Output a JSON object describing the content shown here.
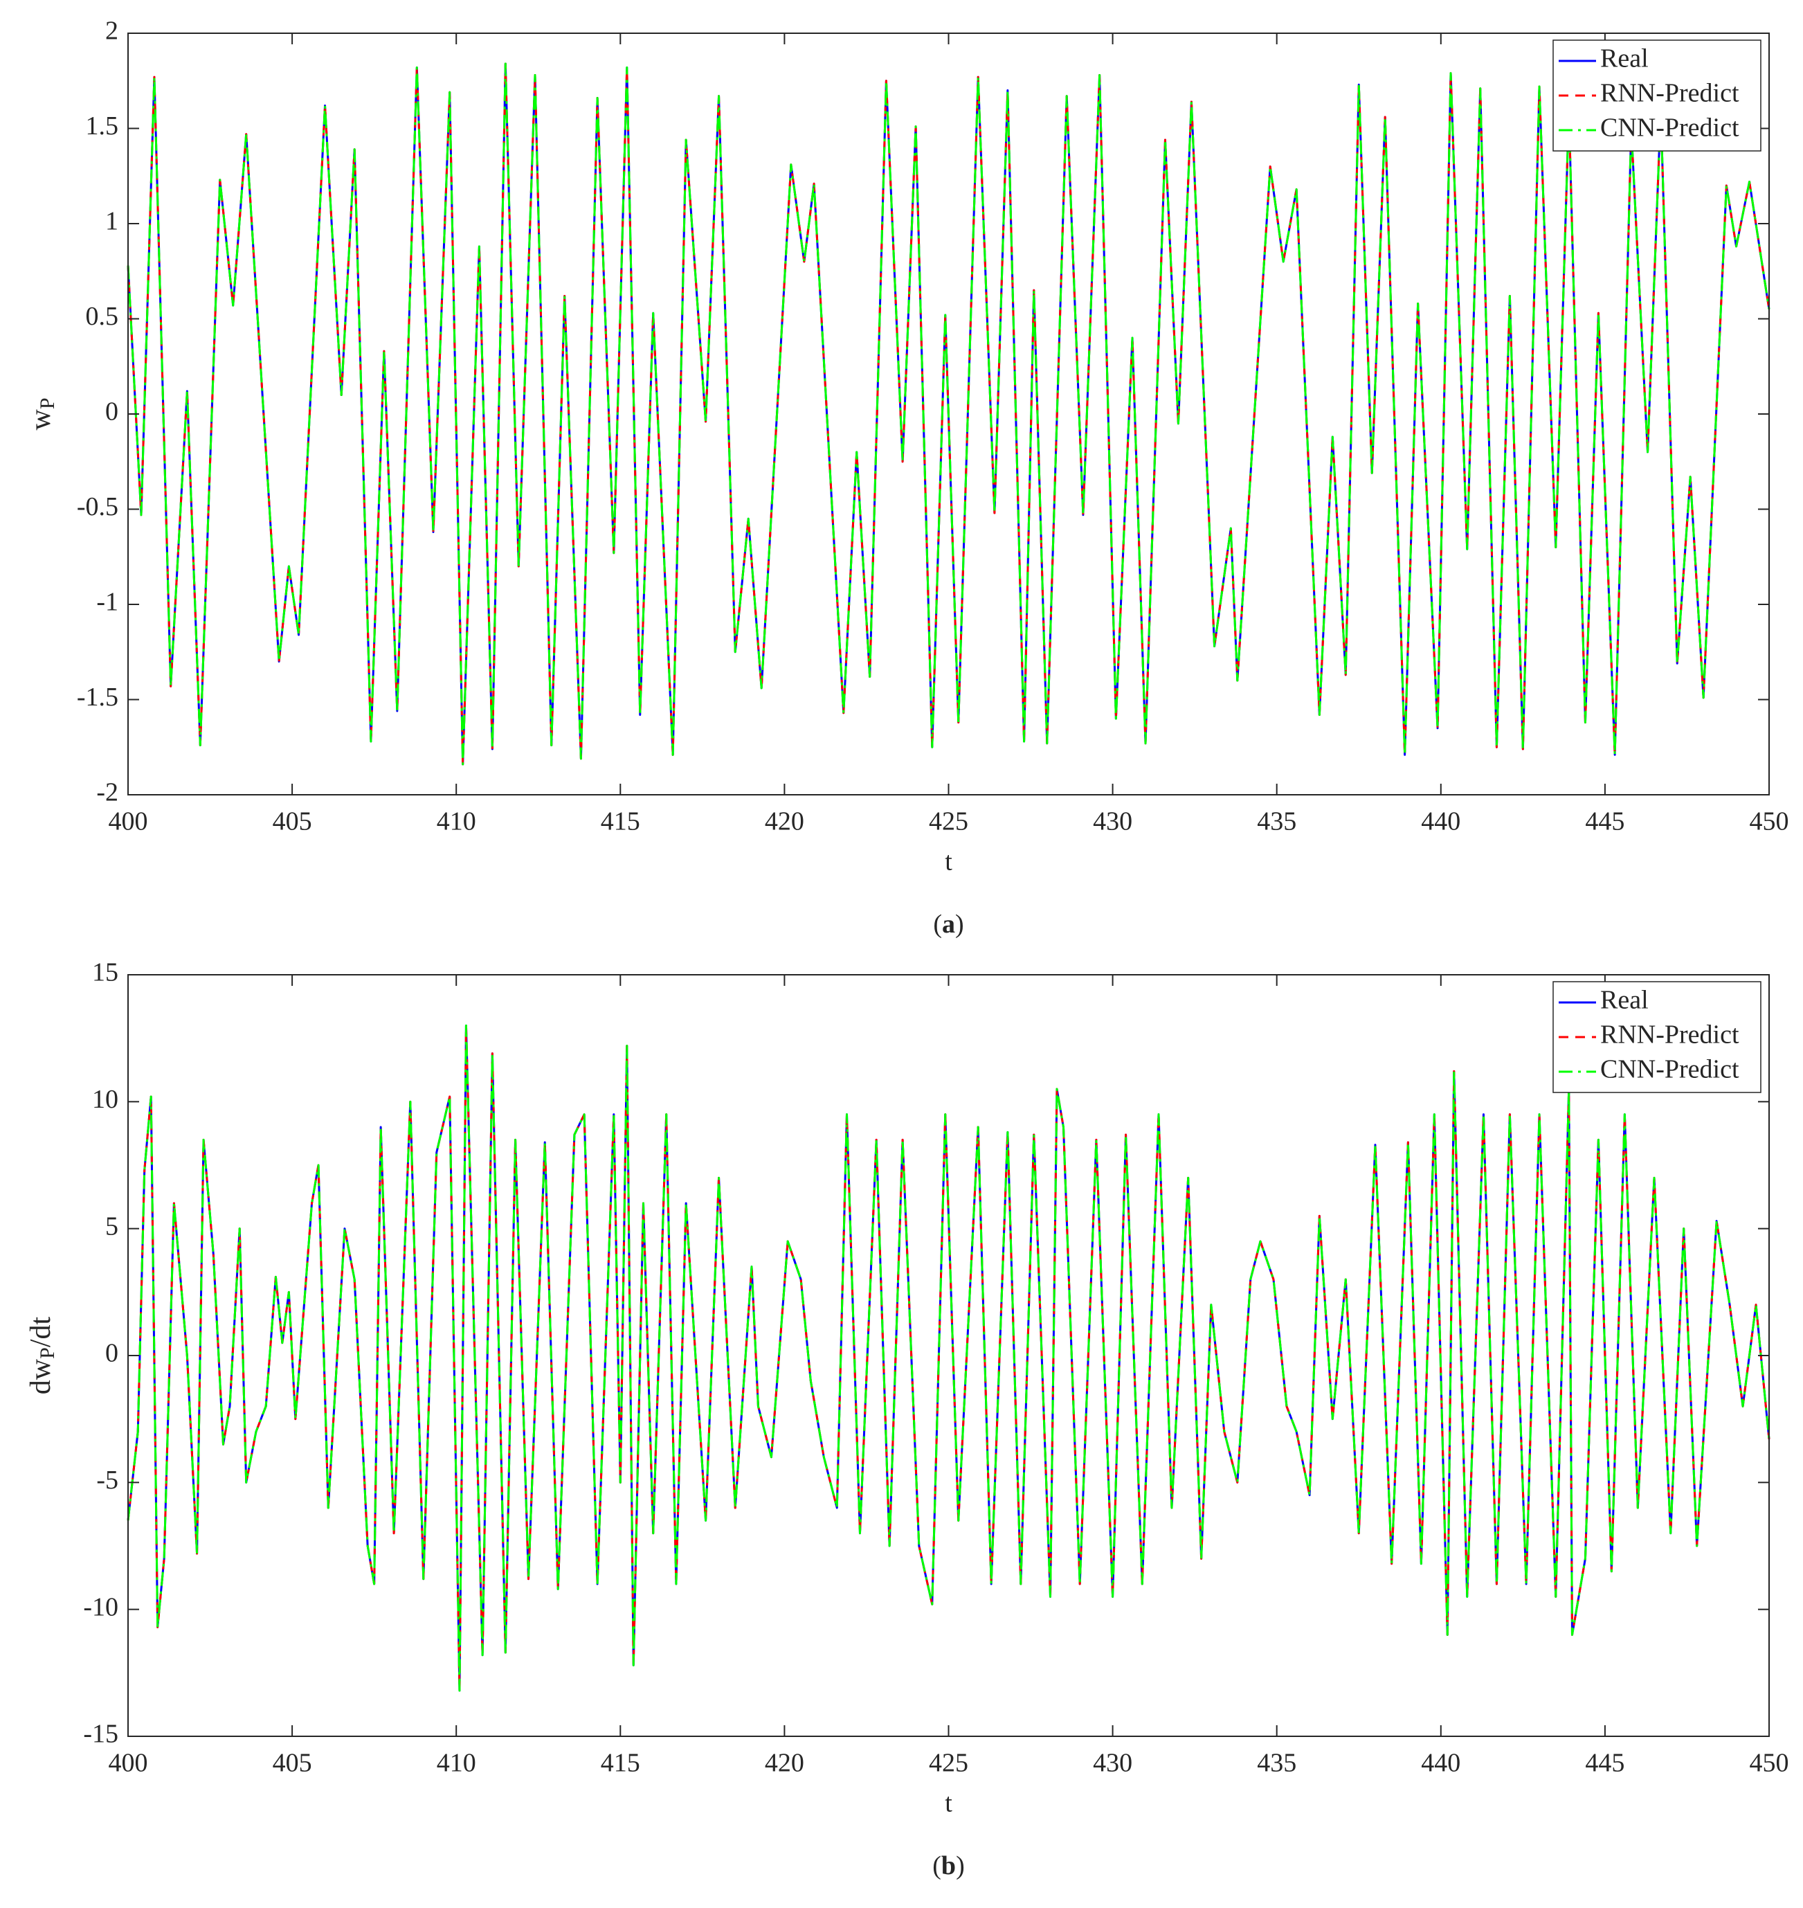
{
  "chart_data": [
    {
      "type": "line",
      "panel_label": "(a)",
      "xlabel": "t",
      "ylabel": [
        "w",
        "P"
      ],
      "xlim": [
        400,
        450
      ],
      "xticks": [
        400,
        405,
        410,
        415,
        420,
        425,
        430,
        435,
        440,
        445,
        450
      ],
      "ylim": [
        -2,
        2
      ],
      "yticks": [
        -2,
        -1.5,
        -1,
        -0.5,
        0,
        0.5,
        1,
        1.5,
        2
      ],
      "grid": false,
      "legend": "upper right",
      "x": [
        400.0,
        400.4,
        400.8,
        401.3,
        401.8,
        402.2,
        402.8,
        403.2,
        403.6,
        404.6,
        404.9,
        405.2,
        406.0,
        406.5,
        406.9,
        407.4,
        407.8,
        408.2,
        408.8,
        409.3,
        409.8,
        410.2,
        410.7,
        411.1,
        411.5,
        411.9,
        412.4,
        412.9,
        413.3,
        413.8,
        414.3,
        414.8,
        415.2,
        415.6,
        416.0,
        416.6,
        417.0,
        417.6,
        418.0,
        418.5,
        418.9,
        419.3,
        420.2,
        420.6,
        420.9,
        421.8,
        422.2,
        422.6,
        423.1,
        423.6,
        424.0,
        424.5,
        424.9,
        425.3,
        425.9,
        426.4,
        426.8,
        427.3,
        427.6,
        428.0,
        428.6,
        429.1,
        429.6,
        430.1,
        430.6,
        431.0,
        431.6,
        432.0,
        432.4,
        433.1,
        433.6,
        433.8,
        434.8,
        435.2,
        435.6,
        436.3,
        436.7,
        437.1,
        437.5,
        437.9,
        438.3,
        438.9,
        439.3,
        439.9,
        440.3,
        440.8,
        441.2,
        441.7,
        442.1,
        442.5,
        443.0,
        443.5,
        443.9,
        444.4,
        444.8,
        445.3,
        445.8,
        446.3,
        446.7,
        447.2,
        447.6,
        448.0,
        448.7,
        449.0,
        449.4,
        450.0
      ],
      "series": [
        {
          "name": "Real",
          "color": "#0000ff",
          "style": "solid",
          "values": [
            0.78,
            -0.53,
            1.77,
            -1.43,
            0.12,
            -1.74,
            1.23,
            0.57,
            1.47,
            -1.3,
            -0.8,
            -1.16,
            1.62,
            0.1,
            1.39,
            -1.72,
            0.33,
            -1.56,
            1.82,
            -0.62,
            1.69,
            -1.84,
            0.88,
            -1.76,
            1.84,
            -0.8,
            1.78,
            -1.74,
            0.62,
            -1.81,
            1.66,
            -0.73,
            1.82,
            -1.58,
            0.53,
            -1.79,
            1.44,
            -0.04,
            1.67,
            -1.25,
            -0.55,
            -1.44,
            1.31,
            0.8,
            1.21,
            -1.57,
            -0.2,
            -1.38,
            1.75,
            -0.25,
            1.51,
            -1.75,
            0.52,
            -1.62,
            1.77,
            -0.52,
            1.7,
            -1.72,
            0.65,
            -1.73,
            1.67,
            -0.53,
            1.78,
            -1.6,
            0.4,
            -1.73,
            1.44,
            -0.05,
            1.64,
            -1.22,
            -0.6,
            -1.4,
            1.3,
            0.8,
            1.18,
            -1.58,
            -0.12,
            -1.37,
            1.73,
            -0.31,
            1.56,
            -1.79,
            0.58,
            -1.65,
            1.79,
            -0.71,
            1.71,
            -1.75,
            0.62,
            -1.76,
            1.72,
            -0.7,
            1.6,
            -1.62,
            0.53,
            -1.79,
            1.5,
            -0.2,
            1.6,
            -1.31,
            -0.33,
            -1.49,
            1.2,
            0.88,
            1.22,
            0.55
          ]
        },
        {
          "name": "RNN-Predict",
          "color": "#ff0000",
          "style": "dashed",
          "values": [
            0.78,
            -0.53,
            1.77,
            -1.43,
            0.12,
            -1.74,
            1.23,
            0.57,
            1.47,
            -1.3,
            -0.8,
            -1.16,
            1.62,
            0.1,
            1.39,
            -1.72,
            0.33,
            -1.56,
            1.82,
            -0.62,
            1.69,
            -1.84,
            0.88,
            -1.76,
            1.84,
            -0.8,
            1.78,
            -1.74,
            0.62,
            -1.81,
            1.66,
            -0.73,
            1.82,
            -1.58,
            0.53,
            -1.79,
            1.44,
            -0.04,
            1.67,
            -1.25,
            -0.55,
            -1.44,
            1.31,
            0.8,
            1.21,
            -1.57,
            -0.2,
            -1.38,
            1.75,
            -0.25,
            1.51,
            -1.75,
            0.52,
            -1.62,
            1.77,
            -0.52,
            1.7,
            -1.72,
            0.65,
            -1.73,
            1.67,
            -0.53,
            1.78,
            -1.6,
            0.4,
            -1.73,
            1.44,
            -0.05,
            1.64,
            -1.22,
            -0.6,
            -1.4,
            1.3,
            0.8,
            1.18,
            -1.58,
            -0.12,
            -1.37,
            1.73,
            -0.31,
            1.56,
            -1.79,
            0.58,
            -1.65,
            1.79,
            -0.71,
            1.71,
            -1.75,
            0.62,
            -1.76,
            1.72,
            -0.7,
            1.6,
            -1.62,
            0.53,
            -1.79,
            1.5,
            -0.2,
            1.6,
            -1.31,
            -0.33,
            -1.49,
            1.2,
            0.88,
            1.22,
            0.55
          ]
        },
        {
          "name": "CNN-Predict",
          "color": "#00ff00",
          "style": "dashdot",
          "values": [
            0.78,
            -0.53,
            1.77,
            -1.43,
            0.12,
            -1.74,
            1.23,
            0.57,
            1.47,
            -1.3,
            -0.8,
            -1.16,
            1.62,
            0.1,
            1.39,
            -1.72,
            0.33,
            -1.56,
            1.82,
            -0.62,
            1.69,
            -1.84,
            0.88,
            -1.76,
            1.84,
            -0.8,
            1.78,
            -1.74,
            0.62,
            -1.81,
            1.66,
            -0.73,
            1.82,
            -1.58,
            0.53,
            -1.79,
            1.44,
            -0.04,
            1.67,
            -1.25,
            -0.55,
            -1.44,
            1.31,
            0.8,
            1.21,
            -1.57,
            -0.2,
            -1.38,
            1.75,
            -0.25,
            1.51,
            -1.75,
            0.52,
            -1.62,
            1.77,
            -0.52,
            1.7,
            -1.72,
            0.65,
            -1.73,
            1.67,
            -0.53,
            1.78,
            -1.6,
            0.4,
            -1.73,
            1.44,
            -0.05,
            1.64,
            -1.22,
            -0.6,
            -1.4,
            1.3,
            0.8,
            1.18,
            -1.58,
            -0.12,
            -1.37,
            1.73,
            -0.31,
            1.56,
            -1.79,
            0.58,
            -1.65,
            1.79,
            -0.71,
            1.71,
            -1.75,
            0.62,
            -1.76,
            1.72,
            -0.7,
            1.6,
            -1.62,
            0.53,
            -1.79,
            1.5,
            -0.2,
            1.6,
            -1.31,
            -0.33,
            -1.49,
            1.2,
            0.88,
            1.22,
            0.55
          ]
        }
      ]
    },
    {
      "type": "line",
      "panel_label": "(b)",
      "xlabel": "t",
      "ylabel": [
        "dw",
        "P",
        "/dt"
      ],
      "xlim": [
        400,
        450
      ],
      "xticks": [
        400,
        405,
        410,
        415,
        420,
        425,
        430,
        435,
        440,
        445,
        450
      ],
      "ylim": [
        -15,
        15
      ],
      "yticks": [
        -15,
        -10,
        -5,
        0,
        5,
        10,
        15
      ],
      "grid": false,
      "legend": "upper right",
      "x": [
        400.0,
        400.3,
        400.5,
        400.7,
        400.9,
        401.1,
        401.4,
        401.8,
        402.1,
        402.3,
        402.6,
        402.9,
        403.1,
        403.4,
        403.6,
        403.9,
        404.2,
        404.5,
        404.7,
        404.9,
        405.1,
        405.6,
        405.8,
        406.1,
        406.6,
        406.9,
        407.3,
        407.5,
        407.7,
        408.1,
        408.6,
        409.0,
        409.4,
        409.8,
        410.1,
        410.3,
        410.8,
        411.1,
        411.5,
        411.8,
        412.2,
        412.7,
        413.1,
        413.6,
        413.9,
        414.3,
        414.8,
        415.0,
        415.2,
        415.4,
        415.7,
        416.0,
        416.4,
        416.7,
        417.0,
        417.6,
        418.0,
        418.5,
        419.0,
        419.2,
        419.6,
        420.1,
        420.5,
        420.8,
        421.2,
        421.6,
        421.9,
        422.3,
        422.8,
        423.2,
        423.6,
        424.1,
        424.5,
        424.9,
        425.3,
        425.9,
        426.3,
        426.8,
        427.2,
        427.6,
        428.1,
        428.3,
        428.5,
        429.0,
        429.5,
        430.0,
        430.4,
        430.9,
        431.4,
        431.8,
        432.3,
        432.7,
        433.0,
        433.4,
        433.8,
        434.2,
        434.5,
        434.9,
        435.3,
        435.6,
        436.0,
        436.3,
        436.7,
        437.1,
        437.5,
        438.0,
        438.5,
        439.0,
        439.4,
        439.8,
        440.2,
        440.4,
        440.8,
        441.3,
        441.7,
        442.1,
        442.6,
        443.0,
        443.5,
        443.9,
        444.0,
        444.4,
        444.8,
        445.2,
        445.6,
        446.0,
        446.5,
        447.0,
        447.4,
        447.8,
        448.4,
        448.8,
        449.2,
        449.6,
        450.0
      ],
      "series": [
        {
          "name": "Real",
          "color": "#0000ff",
          "style": "solid",
          "values": [
            -6.5,
            -3,
            7.3,
            10.2,
            -10.7,
            -8,
            6,
            0,
            -7.8,
            8.5,
            4,
            -3.5,
            -2,
            5,
            -5,
            -3,
            -2,
            3.1,
            0.5,
            2.5,
            -2.5,
            6,
            7.5,
            -6,
            5,
            3,
            -7.5,
            -9,
            9,
            -7,
            10,
            -8.8,
            8,
            10.2,
            -13.2,
            13,
            -11.8,
            11.9,
            -11.7,
            8.5,
            -8.8,
            8.4,
            -9.2,
            8.7,
            9.5,
            -9,
            9.5,
            -5,
            12.2,
            -12.2,
            6,
            -7,
            9.5,
            -9,
            6,
            -6.5,
            7,
            -6,
            3.5,
            -2,
            -4,
            4.5,
            3,
            -1,
            -4,
            -6,
            9.5,
            -7,
            8.5,
            -7.5,
            8.5,
            -7.5,
            -9.8,
            9.5,
            -6.5,
            9,
            -9,
            8.8,
            -9,
            8.7,
            -9.5,
            10.5,
            9,
            -9,
            8.5,
            -9.5,
            8.7,
            -9,
            9.5,
            -6,
            7,
            -8,
            2,
            -3,
            -5,
            3,
            4.5,
            3,
            -2,
            -3,
            -5.5,
            5.5,
            -2.5,
            3,
            -7,
            8.3,
            -8.2,
            8.4,
            -8.2,
            9.5,
            -11,
            11.2,
            -9.5,
            9.5,
            -9,
            9.5,
            -9,
            9.5,
            -9.5,
            10.5,
            -11,
            -8,
            8.5,
            -8.5,
            9.5,
            -6,
            7,
            -7,
            5,
            -7.5,
            5.3,
            2,
            -2,
            2,
            -3.3
          ]
        },
        {
          "name": "RNN-Predict",
          "color": "#ff0000",
          "style": "dashed",
          "values": [
            -6.5,
            -3,
            7.3,
            10.2,
            -10.7,
            -8,
            6,
            0,
            -7.8,
            8.5,
            4,
            -3.5,
            -2,
            5,
            -5,
            -3,
            -2,
            3.1,
            0.5,
            2.5,
            -2.5,
            6,
            7.5,
            -6,
            5,
            3,
            -7.5,
            -9,
            9,
            -7,
            10,
            -8.8,
            8,
            10.2,
            -13.2,
            13,
            -11.8,
            11.9,
            -11.7,
            8.5,
            -8.8,
            8.4,
            -9.2,
            8.7,
            9.5,
            -9,
            9.5,
            -5,
            12.2,
            -12.2,
            6,
            -7,
            9.5,
            -9,
            6,
            -6.5,
            7,
            -6,
            3.5,
            -2,
            -4,
            4.5,
            3,
            -1,
            -4,
            -6,
            9.5,
            -7,
            8.5,
            -7.5,
            8.5,
            -7.5,
            -9.8,
            9.5,
            -6.5,
            9,
            -9,
            8.8,
            -9,
            8.7,
            -9.5,
            10.5,
            9,
            -9,
            8.5,
            -9.5,
            8.7,
            -9,
            9.5,
            -6,
            7,
            -8,
            2,
            -3,
            -5,
            3,
            4.5,
            3,
            -2,
            -3,
            -5.5,
            5.5,
            -2.5,
            3,
            -7,
            8.3,
            -8.2,
            8.4,
            -8.2,
            9.5,
            -11,
            11.2,
            -9.5,
            9.5,
            -9,
            9.5,
            -9,
            9.5,
            -9.5,
            10.5,
            -11,
            -8,
            8.5,
            -8.5,
            9.5,
            -6,
            7,
            -7,
            5,
            -7.5,
            5.3,
            2,
            -2,
            2,
            -3.3
          ]
        },
        {
          "name": "CNN-Predict",
          "color": "#00ff00",
          "style": "dashdot",
          "values": [
            -6.5,
            -3,
            7.3,
            10.2,
            -10.7,
            -8,
            6,
            0,
            -7.8,
            8.5,
            4,
            -3.5,
            -2,
            5,
            -5,
            -3,
            -2,
            3.1,
            0.5,
            2.5,
            -2.5,
            6,
            7.5,
            -6,
            5,
            3,
            -7.5,
            -9,
            9,
            -7,
            10,
            -8.8,
            8,
            10.2,
            -13.2,
            13,
            -11.8,
            11.9,
            -11.7,
            8.5,
            -8.8,
            8.4,
            -9.2,
            8.7,
            9.5,
            -9,
            9.5,
            -5,
            12.2,
            -12.2,
            6,
            -7,
            9.5,
            -9,
            6,
            -6.5,
            7,
            -6,
            3.5,
            -2,
            -4,
            4.5,
            3,
            -1,
            -4,
            -6,
            9.5,
            -7,
            8.5,
            -7.5,
            8.5,
            -7.5,
            -9.8,
            9.5,
            -6.5,
            9,
            -9,
            8.8,
            -9,
            8.7,
            -9.5,
            10.5,
            9,
            -9,
            8.5,
            -9.5,
            8.7,
            -9,
            9.5,
            -6,
            7,
            -8,
            2,
            -3,
            -5,
            3,
            4.5,
            3,
            -2,
            -3,
            -5.5,
            5.5,
            -2.5,
            3,
            -7,
            8.3,
            -8.2,
            8.4,
            -8.2,
            9.5,
            -11,
            11.2,
            -9.5,
            9.5,
            -9,
            9.5,
            -9,
            9.5,
            -9.5,
            10.5,
            -11,
            -8,
            8.5,
            -8.5,
            9.5,
            -6,
            7,
            -7,
            5,
            -7.5,
            5.3,
            2,
            -2,
            2,
            -3.3
          ]
        }
      ]
    }
  ]
}
